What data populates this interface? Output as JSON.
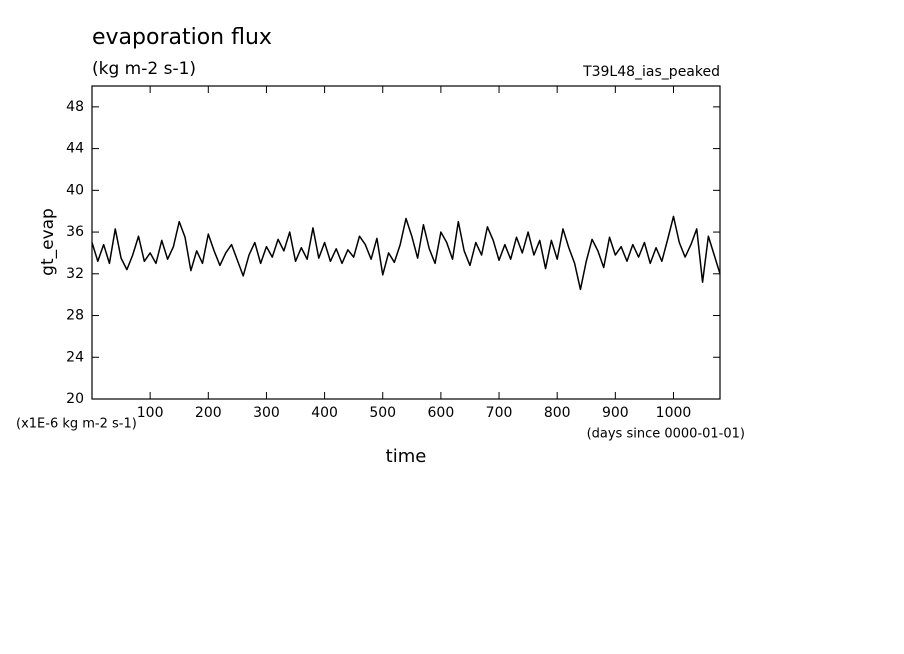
{
  "chart_data": {
    "type": "line",
    "title": "evaporation flux",
    "subtitle": "(kg m-2 s-1)",
    "annotation": "T39L48_ias_peaked",
    "y_label": "gt_evap",
    "x_label": "time",
    "y_unit_note": "(x1E-6 kg m-2 s-1)",
    "x_unit_note": "(days since 0000-01-01)",
    "x": [
      0,
      10,
      20,
      30,
      40,
      50,
      60,
      70,
      80,
      90,
      100,
      110,
      120,
      130,
      140,
      150,
      160,
      170,
      180,
      190,
      200,
      210,
      220,
      230,
      240,
      250,
      260,
      270,
      280,
      290,
      300,
      310,
      320,
      330,
      340,
      350,
      360,
      370,
      380,
      390,
      400,
      410,
      420,
      430,
      440,
      450,
      460,
      470,
      480,
      490,
      500,
      510,
      520,
      530,
      540,
      550,
      560,
      570,
      580,
      590,
      600,
      610,
      620,
      630,
      640,
      650,
      660,
      670,
      680,
      690,
      700,
      710,
      720,
      730,
      740,
      750,
      760,
      770,
      780,
      790,
      800,
      810,
      820,
      830,
      840,
      850,
      860,
      870,
      880,
      890,
      900,
      910,
      920,
      930,
      940,
      950,
      960,
      970,
      980,
      990,
      1000,
      1010,
      1020,
      1030,
      1040,
      1050,
      1060,
      1070,
      1080
    ],
    "series": [
      {
        "name": "gt_evap",
        "color": "#000000",
        "values": [
          35.0,
          33.2,
          34.8,
          33.0,
          36.3,
          33.5,
          32.4,
          33.8,
          35.6,
          33.2,
          34.0,
          33.0,
          35.2,
          33.4,
          34.6,
          37.0,
          35.5,
          32.3,
          34.2,
          33.0,
          35.8,
          34.2,
          32.8,
          34.0,
          34.8,
          33.3,
          31.8,
          33.8,
          35.0,
          33.0,
          34.6,
          33.6,
          35.3,
          34.2,
          36.0,
          33.2,
          34.5,
          33.4,
          36.4,
          33.5,
          35.0,
          33.2,
          34.4,
          33.0,
          34.3,
          33.6,
          35.6,
          34.8,
          33.4,
          35.4,
          31.9,
          34.0,
          33.1,
          34.8,
          37.3,
          35.6,
          33.5,
          36.7,
          34.4,
          33.0,
          36.0,
          35.0,
          33.4,
          37.0,
          34.2,
          32.8,
          35.0,
          33.8,
          36.5,
          35.2,
          33.3,
          34.8,
          33.4,
          35.5,
          34.0,
          36.0,
          33.8,
          35.2,
          32.5,
          35.2,
          33.4,
          36.3,
          34.5,
          33.0,
          30.5,
          33.2,
          35.3,
          34.2,
          32.6,
          35.5,
          33.8,
          34.6,
          33.2,
          34.8,
          33.6,
          35.0,
          33.0,
          34.5,
          33.2,
          35.3,
          37.5,
          35.0,
          33.6,
          34.8,
          36.3,
          31.2,
          35.6,
          33.8,
          32.0
        ]
      }
    ],
    "xlim": [
      0,
      1080
    ],
    "xticks": [
      100,
      200,
      300,
      400,
      500,
      600,
      700,
      800,
      900,
      1000
    ],
    "ylim": [
      20,
      50
    ],
    "yticks": [
      20,
      24,
      28,
      32,
      36,
      40,
      44,
      48
    ],
    "grid": false
  }
}
